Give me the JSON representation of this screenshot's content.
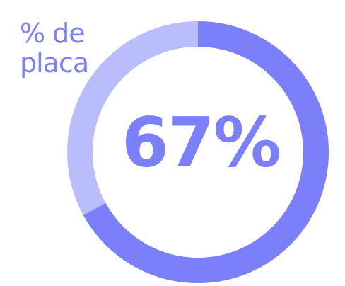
{
  "chart_data": {
    "type": "donut",
    "title": "% de placa",
    "values": [
      67
    ],
    "value_labels": [
      "67%"
    ],
    "max": 100,
    "color": "#7b80fa",
    "track_color": "#babdfc"
  }
}
